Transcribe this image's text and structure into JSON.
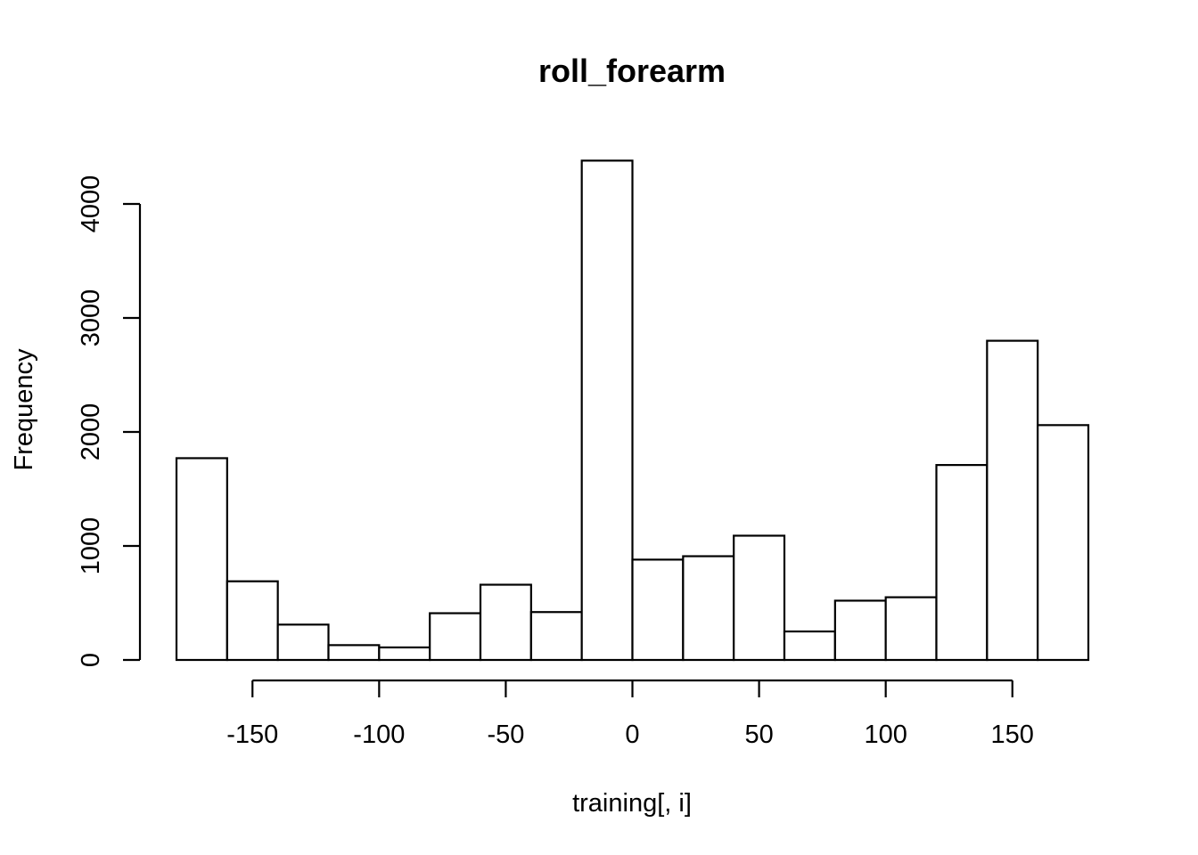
{
  "chart_data": {
    "type": "bar",
    "title": "roll_forearm",
    "xlabel": "training[, i]",
    "ylabel": "Frequency",
    "bin_edges": [
      -180,
      -160,
      -140,
      -120,
      -100,
      -80,
      -60,
      -40,
      -20,
      0,
      20,
      40,
      60,
      80,
      100,
      120,
      140,
      160,
      180
    ],
    "values": [
      1770,
      690,
      310,
      130,
      110,
      410,
      660,
      420,
      4380,
      880,
      910,
      1090,
      250,
      520,
      550,
      1710,
      2800,
      2060
    ],
    "xlim": [
      -180,
      180
    ],
    "ylim": [
      0,
      4380
    ],
    "x_ticks": [
      -150,
      -100,
      -50,
      0,
      50,
      100,
      150
    ],
    "x_tick_labels": [
      "-150",
      "-100",
      "-50",
      "0",
      "50",
      "100",
      "150"
    ],
    "y_ticks": [
      0,
      1000,
      2000,
      3000,
      4000
    ],
    "y_tick_labels": [
      "0",
      "1000",
      "2000",
      "3000",
      "4000"
    ],
    "grid": false,
    "legend": "none",
    "bar_fill": "#ffffff",
    "bar_stroke": "#000000"
  }
}
